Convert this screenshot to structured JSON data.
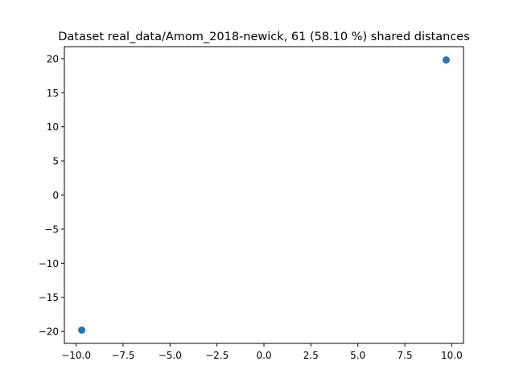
{
  "chart_data": {
    "type": "scatter",
    "title": "Dataset real_data/Amom_2018-newick, 61 (58.10 %) shared distances",
    "xlabel": "",
    "ylabel": "",
    "xlim": [
      -10.625,
      10.625
    ],
    "ylim": [
      -21.75,
      21.75
    ],
    "x_ticks": [
      -10.0,
      -7.5,
      -5.0,
      -2.5,
      0.0,
      2.5,
      5.0,
      7.5,
      10.0
    ],
    "x_tick_labels": [
      "−10.0",
      "−7.5",
      "−5.0",
      "−2.5",
      "0.0",
      "2.5",
      "5.0",
      "7.5",
      "10.0"
    ],
    "y_ticks": [
      -20,
      -15,
      -10,
      -5,
      0,
      5,
      10,
      15,
      20
    ],
    "y_tick_labels": [
      "−20",
      "−15",
      "−10",
      "−5",
      "0",
      "5",
      "10",
      "15",
      "20"
    ],
    "grid": false,
    "legend": "none",
    "series": [
      {
        "color": "#1f77b4",
        "points": [
          {
            "x": -9.7,
            "y": -19.8
          },
          {
            "x": 9.7,
            "y": 19.8
          }
        ]
      }
    ]
  }
}
